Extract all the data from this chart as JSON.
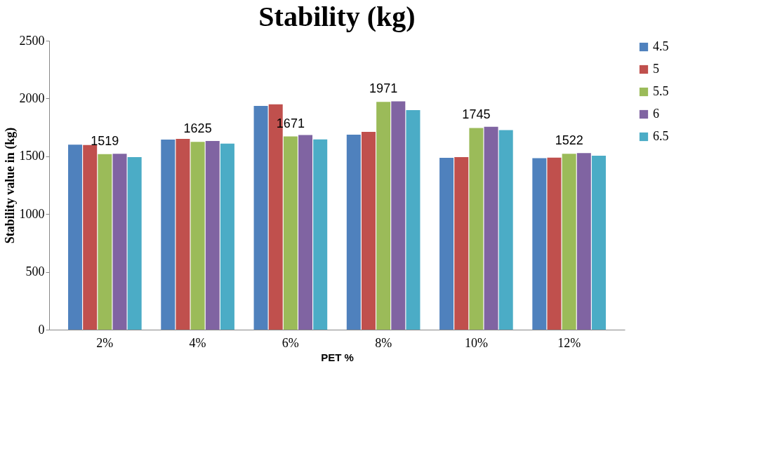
{
  "chart_data": {
    "type": "bar",
    "title": "Stability (kg)",
    "xlabel": "PET %",
    "ylabel": "Stability value in (kg)",
    "categories": [
      "2%",
      "4%",
      "6%",
      "8%",
      "10%",
      "12%"
    ],
    "ylim": [
      0,
      2500
    ],
    "yticks": [
      0,
      500,
      1000,
      1500,
      2000,
      2500
    ],
    "grid": false,
    "legend": "right",
    "series": [
      {
        "name": "4.5",
        "color": "#4f81bd",
        "values": [
          1601,
          1645,
          1935,
          1687,
          1486,
          1484
        ]
      },
      {
        "name": "5",
        "color": "#c0504d",
        "values": [
          1597,
          1650,
          1950,
          1711,
          1492,
          1488
        ]
      },
      {
        "name": "5.5",
        "color": "#9bbb59",
        "values": [
          1519,
          1625,
          1671,
          1971,
          1745,
          1522
        ],
        "value_labels": [
          "1519",
          "1625",
          "1671",
          "1971",
          "1745",
          "1522"
        ]
      },
      {
        "name": "6",
        "color": "#8064a2",
        "values": [
          1522,
          1632,
          1684,
          1975,
          1755,
          1527
        ]
      },
      {
        "name": "6.5",
        "color": "#4bacc6",
        "values": [
          1492,
          1609,
          1646,
          1899,
          1726,
          1505
        ]
      }
    ]
  }
}
